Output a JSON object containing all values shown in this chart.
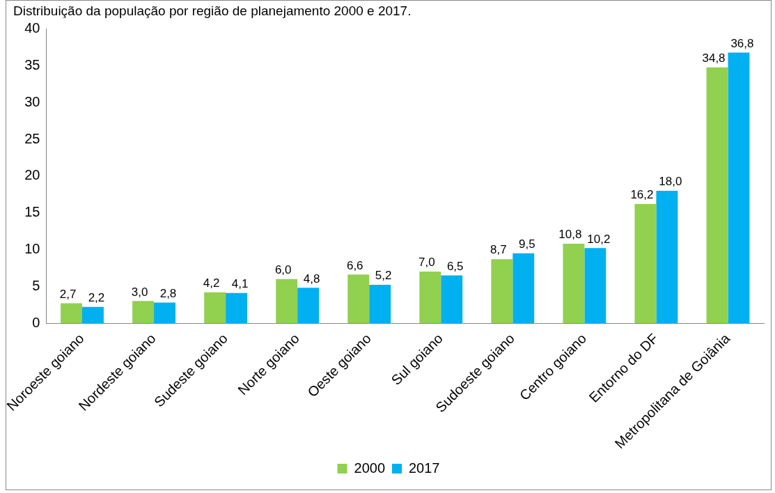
{
  "chart_data": {
    "type": "bar",
    "title": "Distribuição da população por região de planejamento 2000 e 2017.",
    "categories": [
      "Noroeste goiano",
      "Nordeste goiano",
      "Sudeste goiano",
      "Norte goiano",
      "Oeste goiano",
      "Sul goiano",
      "Sudoeste goiano",
      "Centro goiano",
      "Entorno do DF",
      "Metropolitana de Goiânia"
    ],
    "series": [
      {
        "name": "2000",
        "color": "#92d050",
        "values": [
          2.7,
          3.0,
          4.2,
          6.0,
          6.6,
          7.0,
          8.7,
          10.8,
          16.2,
          34.8
        ],
        "value_labels": [
          "2,7",
          "3,0",
          "4,2",
          "6,0",
          "6,6",
          "7,0",
          "8,7",
          "10,8",
          "16,2",
          "34,8"
        ]
      },
      {
        "name": "2017",
        "color": "#00b0f0",
        "values": [
          2.2,
          2.8,
          4.1,
          4.8,
          5.2,
          6.5,
          9.5,
          10.2,
          18.0,
          36.8
        ],
        "value_labels": [
          "2,2",
          "2,8",
          "4,1",
          "4,8",
          "5,2",
          "6,5",
          "9,5",
          "10,2",
          "18,0",
          "36,8"
        ]
      }
    ],
    "ylim": [
      0,
      40
    ],
    "yticks": [
      0,
      5,
      10,
      15,
      20,
      25,
      30,
      35,
      40
    ],
    "grid": false,
    "legend": "bottom"
  }
}
